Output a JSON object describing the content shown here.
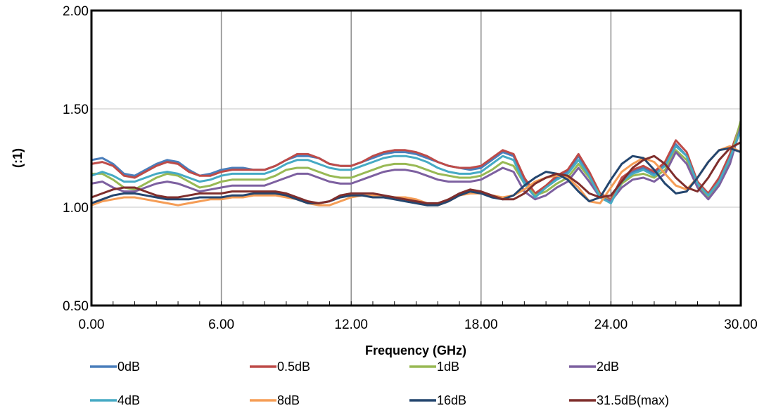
{
  "chart_data": {
    "type": "line",
    "title": "",
    "xlabel": "Frequency (GHz)",
    "ylabel": "(:1)",
    "xlim": [
      0,
      30
    ],
    "ylim": [
      0.5,
      2.0
    ],
    "x_ticks": [
      0,
      6,
      12,
      18,
      24,
      30
    ],
    "x_tick_labels": [
      "0.00",
      "6.00",
      "12.00",
      "18.00",
      "24.00",
      "30.00"
    ],
    "y_ticks": [
      0.5,
      1.0,
      1.5,
      2.0
    ],
    "y_tick_labels": [
      "0.50",
      "1.00",
      "1.50",
      "2.00"
    ],
    "grid": {
      "x": true,
      "y": true
    },
    "legend_position": "bottom",
    "x": [
      0,
      0.5,
      1,
      1.5,
      2,
      2.5,
      3,
      3.5,
      4,
      4.5,
      5,
      5.5,
      6,
      6.5,
      7,
      7.5,
      8,
      8.5,
      9,
      9.5,
      10,
      10.5,
      11,
      11.5,
      12,
      12.5,
      13,
      13.5,
      14,
      14.5,
      15,
      15.5,
      16,
      16.5,
      17,
      17.5,
      18,
      18.5,
      19,
      19.5,
      20,
      20.5,
      21,
      21.5,
      22,
      22.5,
      23,
      23.5,
      24,
      24.5,
      25,
      25.5,
      26,
      26.5,
      27,
      27.5,
      28,
      28.5,
      29,
      29.5,
      30
    ],
    "series": [
      {
        "name": "0dB",
        "color": "#4a7ebb",
        "values": [
          1.24,
          1.25,
          1.22,
          1.17,
          1.16,
          1.19,
          1.22,
          1.24,
          1.23,
          1.19,
          1.16,
          1.17,
          1.19,
          1.2,
          1.2,
          1.19,
          1.19,
          1.21,
          1.24,
          1.26,
          1.26,
          1.25,
          1.22,
          1.21,
          1.21,
          1.23,
          1.25,
          1.27,
          1.28,
          1.28,
          1.27,
          1.25,
          1.23,
          1.21,
          1.2,
          1.19,
          1.2,
          1.24,
          1.28,
          1.26,
          1.14,
          1.06,
          1.1,
          1.15,
          1.18,
          1.26,
          1.17,
          1.06,
          1.03,
          1.14,
          1.18,
          1.2,
          1.17,
          1.22,
          1.32,
          1.26,
          1.12,
          1.06,
          1.14,
          1.26,
          1.42
        ]
      },
      {
        "name": "0.5dB",
        "color": "#be4b48",
        "values": [
          1.22,
          1.23,
          1.21,
          1.16,
          1.15,
          1.18,
          1.21,
          1.23,
          1.22,
          1.18,
          1.16,
          1.16,
          1.18,
          1.19,
          1.19,
          1.19,
          1.19,
          1.21,
          1.24,
          1.27,
          1.27,
          1.25,
          1.22,
          1.21,
          1.21,
          1.23,
          1.26,
          1.28,
          1.29,
          1.29,
          1.28,
          1.26,
          1.23,
          1.21,
          1.2,
          1.2,
          1.21,
          1.25,
          1.29,
          1.27,
          1.15,
          1.07,
          1.11,
          1.16,
          1.19,
          1.27,
          1.18,
          1.07,
          1.04,
          1.15,
          1.19,
          1.21,
          1.18,
          1.23,
          1.34,
          1.28,
          1.13,
          1.07,
          1.15,
          1.27,
          1.43
        ]
      },
      {
        "name": "1dB",
        "color": "#98b954",
        "values": [
          1.17,
          1.17,
          1.14,
          1.1,
          1.09,
          1.12,
          1.15,
          1.17,
          1.16,
          1.13,
          1.1,
          1.11,
          1.13,
          1.14,
          1.14,
          1.14,
          1.14,
          1.16,
          1.19,
          1.2,
          1.2,
          1.18,
          1.16,
          1.15,
          1.15,
          1.17,
          1.19,
          1.21,
          1.22,
          1.22,
          1.21,
          1.19,
          1.17,
          1.16,
          1.15,
          1.15,
          1.16,
          1.19,
          1.23,
          1.21,
          1.12,
          1.06,
          1.08,
          1.12,
          1.15,
          1.22,
          1.15,
          1.06,
          1.03,
          1.12,
          1.16,
          1.17,
          1.15,
          1.19,
          1.29,
          1.24,
          1.11,
          1.05,
          1.12,
          1.24,
          1.44
        ]
      },
      {
        "name": "2dB",
        "color": "#7d60a0",
        "values": [
          1.12,
          1.13,
          1.1,
          1.08,
          1.08,
          1.1,
          1.12,
          1.13,
          1.12,
          1.1,
          1.08,
          1.09,
          1.1,
          1.11,
          1.11,
          1.11,
          1.11,
          1.13,
          1.15,
          1.17,
          1.17,
          1.15,
          1.13,
          1.12,
          1.12,
          1.14,
          1.16,
          1.18,
          1.19,
          1.19,
          1.18,
          1.16,
          1.14,
          1.13,
          1.13,
          1.13,
          1.14,
          1.17,
          1.2,
          1.18,
          1.08,
          1.04,
          1.06,
          1.1,
          1.13,
          1.2,
          1.13,
          1.05,
          1.03,
          1.1,
          1.14,
          1.15,
          1.13,
          1.17,
          1.28,
          1.22,
          1.1,
          1.04,
          1.11,
          1.22,
          1.41
        ]
      },
      {
        "name": "4dB",
        "color": "#46aac4",
        "values": [
          1.16,
          1.18,
          1.16,
          1.13,
          1.13,
          1.15,
          1.17,
          1.18,
          1.17,
          1.15,
          1.13,
          1.14,
          1.16,
          1.17,
          1.17,
          1.17,
          1.17,
          1.19,
          1.22,
          1.24,
          1.24,
          1.22,
          1.2,
          1.19,
          1.19,
          1.21,
          1.23,
          1.25,
          1.26,
          1.26,
          1.25,
          1.23,
          1.2,
          1.18,
          1.17,
          1.17,
          1.18,
          1.22,
          1.26,
          1.24,
          1.12,
          1.05,
          1.1,
          1.14,
          1.17,
          1.24,
          1.16,
          1.05,
          1.02,
          1.13,
          1.17,
          1.19,
          1.16,
          1.21,
          1.31,
          1.26,
          1.12,
          1.06,
          1.13,
          1.25,
          1.39
        ]
      },
      {
        "name": "8dB",
        "color": "#f59d56",
        "values": [
          1.01,
          1.03,
          1.04,
          1.05,
          1.05,
          1.04,
          1.03,
          1.02,
          1.01,
          1.02,
          1.03,
          1.04,
          1.04,
          1.05,
          1.05,
          1.06,
          1.06,
          1.06,
          1.05,
          1.04,
          1.02,
          1.01,
          1.01,
          1.03,
          1.05,
          1.06,
          1.06,
          1.05,
          1.05,
          1.05,
          1.04,
          1.02,
          1.01,
          1.03,
          1.06,
          1.07,
          1.07,
          1.06,
          1.05,
          1.06,
          1.09,
          1.13,
          1.15,
          1.16,
          1.15,
          1.1,
          1.03,
          1.02,
          1.1,
          1.18,
          1.22,
          1.25,
          1.23,
          1.17,
          1.11,
          1.09,
          1.15,
          1.23,
          1.29,
          1.31,
          1.28
        ]
      },
      {
        "name": "16dB",
        "color": "#24466f",
        "values": [
          1.02,
          1.04,
          1.06,
          1.07,
          1.07,
          1.06,
          1.05,
          1.04,
          1.04,
          1.04,
          1.05,
          1.05,
          1.05,
          1.06,
          1.06,
          1.07,
          1.07,
          1.07,
          1.06,
          1.04,
          1.02,
          1.02,
          1.03,
          1.05,
          1.06,
          1.06,
          1.05,
          1.05,
          1.04,
          1.03,
          1.02,
          1.01,
          1.01,
          1.03,
          1.06,
          1.08,
          1.07,
          1.05,
          1.04,
          1.06,
          1.11,
          1.15,
          1.18,
          1.17,
          1.14,
          1.08,
          1.03,
          1.05,
          1.14,
          1.22,
          1.26,
          1.25,
          1.19,
          1.12,
          1.07,
          1.08,
          1.15,
          1.23,
          1.29,
          1.3,
          1.28
        ]
      },
      {
        "name": "31.5dB(max)",
        "color": "#7f2e2c",
        "values": [
          1.05,
          1.07,
          1.09,
          1.1,
          1.1,
          1.08,
          1.06,
          1.05,
          1.05,
          1.06,
          1.07,
          1.07,
          1.07,
          1.08,
          1.08,
          1.08,
          1.08,
          1.08,
          1.07,
          1.05,
          1.03,
          1.02,
          1.03,
          1.06,
          1.07,
          1.07,
          1.07,
          1.06,
          1.05,
          1.04,
          1.03,
          1.02,
          1.02,
          1.04,
          1.07,
          1.09,
          1.08,
          1.06,
          1.04,
          1.04,
          1.07,
          1.12,
          1.15,
          1.17,
          1.16,
          1.12,
          1.07,
          1.05,
          1.06,
          1.13,
          1.2,
          1.24,
          1.26,
          1.22,
          1.15,
          1.1,
          1.08,
          1.15,
          1.24,
          1.3,
          1.33
        ]
      }
    ]
  }
}
